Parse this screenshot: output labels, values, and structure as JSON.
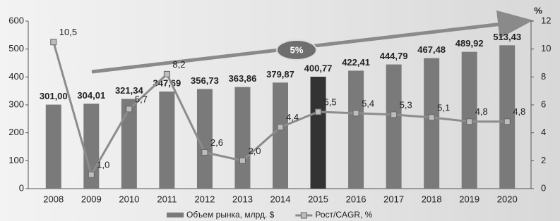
{
  "chart_data": {
    "type": "bar_line",
    "categories": [
      "2008",
      "2009",
      "2010",
      "2011",
      "2012",
      "2013",
      "2014",
      "2015",
      "2016",
      "2017",
      "2018",
      "2019",
      "2020"
    ],
    "series": [
      {
        "name": "Объем рынка, млрд. $",
        "type": "bar",
        "color": "#7a7a7a",
        "colors": [
          "#7a7a7a",
          "#7a7a7a",
          "#7a7a7a",
          "#7a7a7a",
          "#7a7a7a",
          "#7a7a7a",
          "#7a7a7a",
          "#333333",
          "#7a7a7a",
          "#7a7a7a",
          "#7a7a7a",
          "#7a7a7a",
          "#7a7a7a"
        ],
        "values": [
          301.0,
          304.01,
          321.34,
          347.69,
          356.73,
          363.86,
          379.87,
          400.77,
          422.41,
          444.79,
          467.48,
          489.92,
          513.43
        ],
        "value_labels": [
          "301,00",
          "304,01",
          "321,34",
          "347,69",
          "356,73",
          "363,86",
          "379,87",
          "400,77",
          "422,41",
          "444,79",
          "467,48",
          "489,92",
          "513,43"
        ]
      },
      {
        "name": "Рост/CAGR, %",
        "type": "line",
        "axis": "y2",
        "color": "#8c8c8c",
        "values": [
          10.5,
          1.0,
          5.7,
          8.2,
          2.6,
          2.0,
          4.4,
          5.5,
          5.4,
          5.3,
          5.1,
          4.8,
          4.8
        ],
        "value_labels": [
          "10,5",
          "1,0",
          "5,7",
          "8,2",
          "2,6",
          "2,0",
          "4,4",
          "5,5",
          "5,4",
          "5,3",
          "5,1",
          "4,8",
          "4,8"
        ]
      }
    ],
    "ylim": [
      0,
      600
    ],
    "yticks": [
      0,
      100,
      200,
      300,
      400,
      500,
      600
    ],
    "y2lim": [
      0,
      12
    ],
    "y2ticks": [
      0,
      2,
      4,
      6,
      8,
      10,
      12
    ],
    "y2_label": "%",
    "annotation": "5%"
  }
}
